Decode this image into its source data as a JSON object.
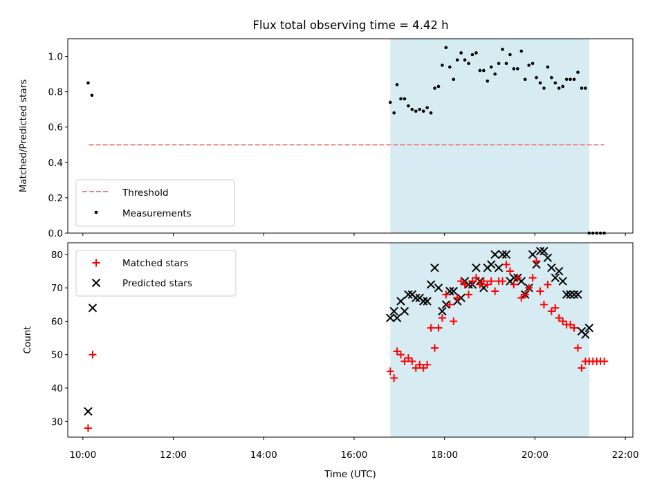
{
  "figure": {
    "title": "Flux total observing time = 4.42 h"
  },
  "colors": {
    "threshold": "#f08080",
    "measurements": "#000000",
    "matched": "#ff0000",
    "predicted": "#000000",
    "shade": "#add8e6"
  },
  "chart_data": [
    {
      "type": "scatter",
      "ylabel": "Matched/Predicted stars",
      "xlabel": "",
      "xlim": [
        "09:40",
        "22:10"
      ],
      "ylim": [
        0,
        1.1
      ],
      "yticks": [
        0.0,
        0.2,
        0.4,
        0.6,
        0.8,
        1.0
      ],
      "shaded_interval": [
        "16:48",
        "21:12"
      ],
      "legend_position": "lower left",
      "threshold": {
        "name": "Threshold",
        "y": 0.5,
        "x": [
          "10:08",
          "21:32"
        ],
        "style": "dashed"
      },
      "series": [
        {
          "name": "Measurements",
          "marker": "dot",
          "x": [
            "10:07",
            "10:12",
            "16:48",
            "16:53",
            "16:57",
            "17:02",
            "17:07",
            "17:12",
            "17:17",
            "17:22",
            "17:27",
            "17:32",
            "17:37",
            "17:42",
            "17:47",
            "17:52",
            "17:57",
            "18:02",
            "18:07",
            "18:12",
            "18:17",
            "18:22",
            "18:27",
            "18:32",
            "18:37",
            "18:42",
            "18:47",
            "18:52",
            "18:57",
            "19:02",
            "19:07",
            "19:12",
            "19:17",
            "19:22",
            "19:27",
            "19:32",
            "19:37",
            "19:42",
            "19:47",
            "19:52",
            "19:57",
            "20:02",
            "20:07",
            "20:12",
            "20:17",
            "20:22",
            "20:27",
            "20:32",
            "20:37",
            "20:42",
            "20:47",
            "20:52",
            "20:57",
            "21:02",
            "21:07",
            "21:12",
            "21:17",
            "21:22",
            "21:27",
            "21:32"
          ],
          "y": [
            0.85,
            0.78,
            0.74,
            0.68,
            0.84,
            0.76,
            0.76,
            0.72,
            0.7,
            0.69,
            0.7,
            0.69,
            0.71,
            0.68,
            0.82,
            0.83,
            0.95,
            1.05,
            0.94,
            0.87,
            0.98,
            1.02,
            0.98,
            0.96,
            1.01,
            1.02,
            0.92,
            0.92,
            0.86,
            0.94,
            0.9,
            0.96,
            1.04,
            0.96,
            1.01,
            0.93,
            0.93,
            1.03,
            0.87,
            0.95,
            0.96,
            0.88,
            0.85,
            0.82,
            0.94,
            0.88,
            0.85,
            0.82,
            0.83,
            0.87,
            0.87,
            0.87,
            0.91,
            0.82,
            0.82,
            0.0,
            0.0,
            0.0,
            0.0,
            0.0
          ]
        }
      ]
    },
    {
      "type": "scatter",
      "ylabel": "Count",
      "xlabel": "Time (UTC)",
      "xlim": [
        "09:40",
        "22:10"
      ],
      "ylim": [
        25.3,
        83.5
      ],
      "yticks": [
        30,
        40,
        50,
        60,
        70,
        80
      ],
      "xticks": [
        "10:00",
        "12:00",
        "14:00",
        "16:00",
        "18:00",
        "20:00",
        "22:00"
      ],
      "shaded_interval": [
        "16:48",
        "21:12"
      ],
      "legend_position": "upper left",
      "series": [
        {
          "name": "Matched stars",
          "marker": "plus",
          "x": [
            "10:07",
            "10:13",
            "16:48",
            "16:53",
            "16:57",
            "17:02",
            "17:07",
            "17:12",
            "17:17",
            "17:22",
            "17:27",
            "17:32",
            "17:37",
            "17:42",
            "17:47",
            "17:52",
            "17:57",
            "18:02",
            "18:07",
            "18:12",
            "18:17",
            "18:22",
            "18:27",
            "18:32",
            "18:37",
            "18:42",
            "18:47",
            "18:52",
            "18:57",
            "19:02",
            "19:07",
            "19:12",
            "19:17",
            "19:22",
            "19:27",
            "19:32",
            "19:37",
            "19:42",
            "19:47",
            "19:52",
            "19:57",
            "20:02",
            "20:07",
            "20:12",
            "20:17",
            "20:22",
            "20:27",
            "20:32",
            "20:37",
            "20:42",
            "20:47",
            "20:52",
            "20:57",
            "21:02",
            "21:07",
            "21:12",
            "21:17",
            "21:22",
            "21:27",
            "21:32"
          ],
          "y": [
            28,
            50,
            45,
            43,
            51,
            50,
            48,
            49,
            48,
            46,
            47,
            46,
            47,
            58,
            52,
            58,
            61,
            68,
            65,
            60,
            67,
            72,
            71,
            68,
            72,
            73,
            71,
            72,
            71,
            72,
            69,
            72,
            72,
            77,
            75,
            71,
            73,
            67,
            68,
            70,
            73,
            78,
            69,
            65,
            71,
            63,
            64,
            61,
            60,
            59,
            59,
            58,
            52,
            46,
            48,
            48,
            48,
            48,
            48,
            48
          ]
        },
        {
          "name": "Predicted stars",
          "marker": "x",
          "x": [
            "10:07",
            "10:13",
            "16:48",
            "16:53",
            "16:57",
            "17:02",
            "17:07",
            "17:12",
            "17:17",
            "17:22",
            "17:27",
            "17:32",
            "17:37",
            "17:42",
            "17:47",
            "17:52",
            "17:57",
            "18:02",
            "18:07",
            "18:12",
            "18:17",
            "18:22",
            "18:27",
            "18:32",
            "18:37",
            "18:42",
            "18:47",
            "18:52",
            "18:57",
            "19:02",
            "19:07",
            "19:12",
            "19:17",
            "19:22",
            "19:27",
            "19:32",
            "19:37",
            "19:42",
            "19:47",
            "19:52",
            "19:57",
            "20:02",
            "20:07",
            "20:12",
            "20:17",
            "20:22",
            "20:27",
            "20:32",
            "20:37",
            "20:42",
            "20:47",
            "20:52",
            "20:57",
            "21:02",
            "21:07",
            "21:12"
          ],
          "y": [
            33,
            64,
            61,
            63,
            61,
            66,
            63,
            68,
            68,
            67,
            67,
            66,
            66,
            71,
            76,
            70,
            63,
            65,
            69,
            69,
            66,
            67,
            72,
            71,
            71,
            76,
            72,
            70,
            76,
            77,
            80,
            76,
            80,
            80,
            72,
            73,
            73,
            72,
            68,
            70,
            80,
            77,
            81,
            81,
            79,
            76,
            73,
            75,
            72,
            68,
            68,
            68,
            68,
            57,
            56,
            58
          ]
        }
      ]
    }
  ]
}
